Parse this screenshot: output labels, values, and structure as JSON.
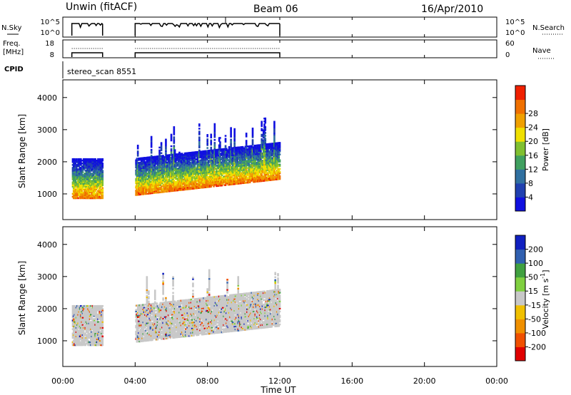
{
  "header": {
    "title": "Unwin (fitACF)",
    "beam": "Beam 06",
    "date": "16/Apr/2010"
  },
  "left_labels": {
    "nsky": "N.Sky",
    "freq": "Freq.",
    "freq_unit": "[MHz]",
    "cpid": "CPID"
  },
  "right_labels": {
    "nsearch": "N.Search",
    "nave": "Nave"
  },
  "top_panel_ticks": {
    "nsky_left": [
      "10^5",
      "10^0"
    ],
    "nsky_right": [
      "10^5",
      "10^0"
    ],
    "freq_left": [
      "18",
      "8"
    ],
    "nave_right": [
      "60",
      "0"
    ]
  },
  "cpid_text": "stereo_scan 8551",
  "colors": {
    "power": [
      "#1010e0",
      "#2040b0",
      "#3070a0",
      "#40a060",
      "#80c030",
      "#f0e000",
      "#f0a000",
      "#f07000",
      "#f02000"
    ],
    "velocity": [
      "#e00000",
      "#f05000",
      "#f09000",
      "#f0c000",
      "#c8c8c8",
      "#80d040",
      "#40a040",
      "#3060b0",
      "#1020c0"
    ]
  },
  "chart_data": [
    {
      "type": "heatmap",
      "name": "power",
      "ylabel": "Slant Range [km]",
      "yticks": [
        "1000",
        "2000",
        "3000",
        "4000"
      ],
      "ylim": [
        200,
        4550
      ],
      "xlim": [
        0,
        24
      ],
      "colorbar": {
        "label": "Power [dB]",
        "ticks": [
          "4",
          "8",
          "12",
          "16",
          "20",
          "24",
          "28"
        ],
        "range": [
          0,
          32
        ]
      },
      "segments": [
        {
          "x0": 0.5,
          "x1": 2.2,
          "y0": 850,
          "y1": 2100
        },
        {
          "x0": 4.0,
          "x1": 12.0,
          "y0": 900,
          "y1": 3200
        }
      ]
    },
    {
      "type": "heatmap",
      "name": "velocity",
      "ylabel": "Slant Range [km]",
      "yticks": [
        "1000",
        "2000",
        "3000",
        "4000"
      ],
      "ylim": [
        200,
        4550
      ],
      "xlim": [
        0,
        24
      ],
      "colorbar": {
        "label": "Velocity [m s",
        "label_sup": "-1",
        "label_end": "]",
        "ticks": [
          "-200",
          "-100",
          "-50",
          "-15",
          "15",
          "50",
          "100",
          "200"
        ]
      },
      "segments": [
        {
          "x0": 0.5,
          "x1": 2.2,
          "y0": 850,
          "y1": 2100
        },
        {
          "x0": 4.0,
          "x1": 12.0,
          "y0": 900,
          "y1": 3200
        }
      ]
    }
  ],
  "xaxis": {
    "label": "Time UT",
    "ticks": [
      "00:00",
      "04:00",
      "08:00",
      "12:00",
      "16:00",
      "20:00",
      "00:00"
    ]
  }
}
